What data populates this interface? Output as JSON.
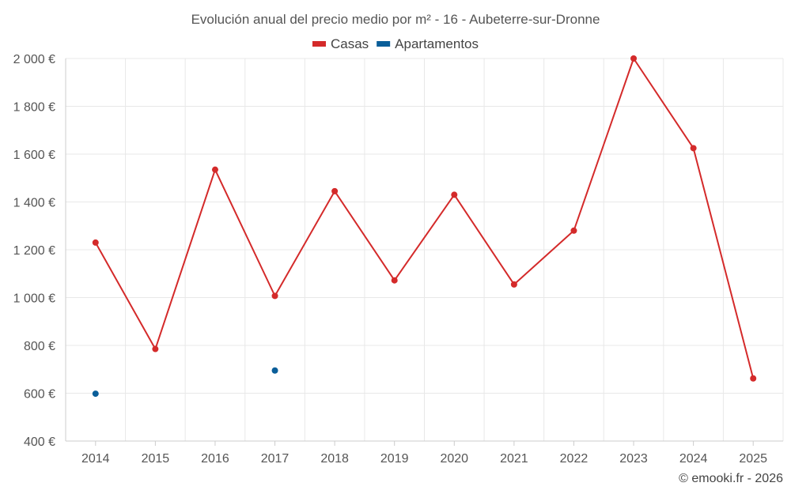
{
  "chart_data": {
    "type": "line",
    "title": "Evolución anual del precio medio por m² - 16 - Aubeterre-sur-Dronne",
    "categories": [
      "2014",
      "2015",
      "2016",
      "2017",
      "2018",
      "2019",
      "2020",
      "2021",
      "2022",
      "2023",
      "2024",
      "2025"
    ],
    "series": [
      {
        "name": "Casas",
        "color": "#d42a2a",
        "values": [
          1230,
          785,
          1535,
          1007,
          1445,
          1072,
          1430,
          1055,
          1280,
          2000,
          1625,
          662
        ]
      },
      {
        "name": "Apartamentos",
        "color": "#0a5e99",
        "values": [
          598,
          null,
          null,
          695,
          null,
          null,
          null,
          null,
          null,
          null,
          null,
          null
        ]
      }
    ],
    "ylim": [
      400,
      2000
    ],
    "yticks": [
      400,
      600,
      800,
      1000,
      1200,
      1400,
      1600,
      1800,
      2000
    ],
    "ytick_labels": [
      "400 €",
      "600 €",
      "800 €",
      "1 000 €",
      "1 200 €",
      "1 400 €",
      "1 600 €",
      "1 800 €",
      "2 000 €"
    ],
    "xlabel": "",
    "ylabel": "",
    "grid": true,
    "legend": "top-center"
  },
  "credit": "© emooki.fr - 2026"
}
